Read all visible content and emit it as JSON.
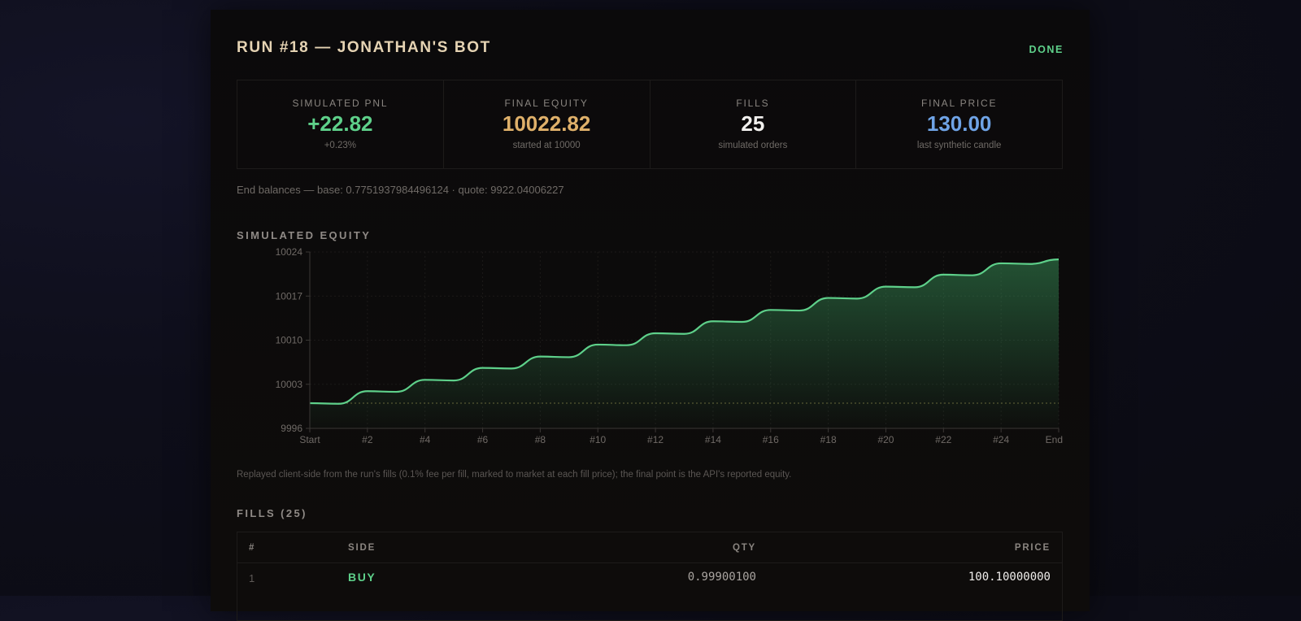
{
  "header": {
    "title": "RUN #18 — JONATHAN'S BOT",
    "status": "DONE"
  },
  "stats": [
    {
      "label": "SIMULATED PNL",
      "value": "+22.82",
      "sub": "+0.23%",
      "color": "#5ed08a"
    },
    {
      "label": "FINAL EQUITY",
      "value": "10022.82",
      "sub": "started at 10000",
      "color": "#dfb06a"
    },
    {
      "label": "FILLS",
      "value": "25",
      "sub": "simulated orders",
      "color": "#f2f0ee"
    },
    {
      "label": "FINAL PRICE",
      "value": "130.00",
      "sub": "last synthetic candle",
      "color": "#6fa3e6"
    }
  ],
  "balances": "End balances — base: 0.7751937984496124 · quote: 9922.04006227",
  "equity_section": {
    "title": "SIMULATED EQUITY"
  },
  "chart_note": "Replayed client-side from the run's fills (0.1% fee per fill, marked to market at each fill price); the final point is the API's reported equity.",
  "fills_section": {
    "title": "FILLS (25)",
    "columns": {
      "index": "#",
      "side": "SIDE",
      "qty": "QTY",
      "price": "PRICE"
    },
    "rows": [
      {
        "index": "1",
        "side": "BUY",
        "qty": "0.99900100",
        "price": "100.10000000"
      }
    ]
  },
  "colors": {
    "accent_green": "#5ed08a",
    "accent_gold": "#dfb06a",
    "accent_blue": "#6fa3e6"
  },
  "chart_data": {
    "type": "area",
    "title": "",
    "xlabel": "",
    "ylabel": "",
    "x_ticks": [
      "Start",
      "#2",
      "#4",
      "#6",
      "#8",
      "#10",
      "#12",
      "#14",
      "#16",
      "#18",
      "#20",
      "#22",
      "#24",
      "End"
    ],
    "y_ticks": [
      "10024",
      "10017",
      "10010",
      "10003",
      "9996"
    ],
    "ylim": [
      9996,
      10024
    ],
    "baseline": 10000,
    "grid": true,
    "series": [
      {
        "values": [
          10000,
          9999.9,
          10001.9,
          10001.8,
          10003.7,
          10003.6,
          10005.6,
          10005.5,
          10007.4,
          10007.3,
          10009.3,
          10009.2,
          10011.1,
          10011.0,
          10013.0,
          10012.9,
          10014.8,
          10014.7,
          10016.7,
          10016.6,
          10018.5,
          10018.4,
          10020.4,
          10020.3,
          10022.2,
          10022.1,
          10022.82
        ]
      }
    ]
  }
}
